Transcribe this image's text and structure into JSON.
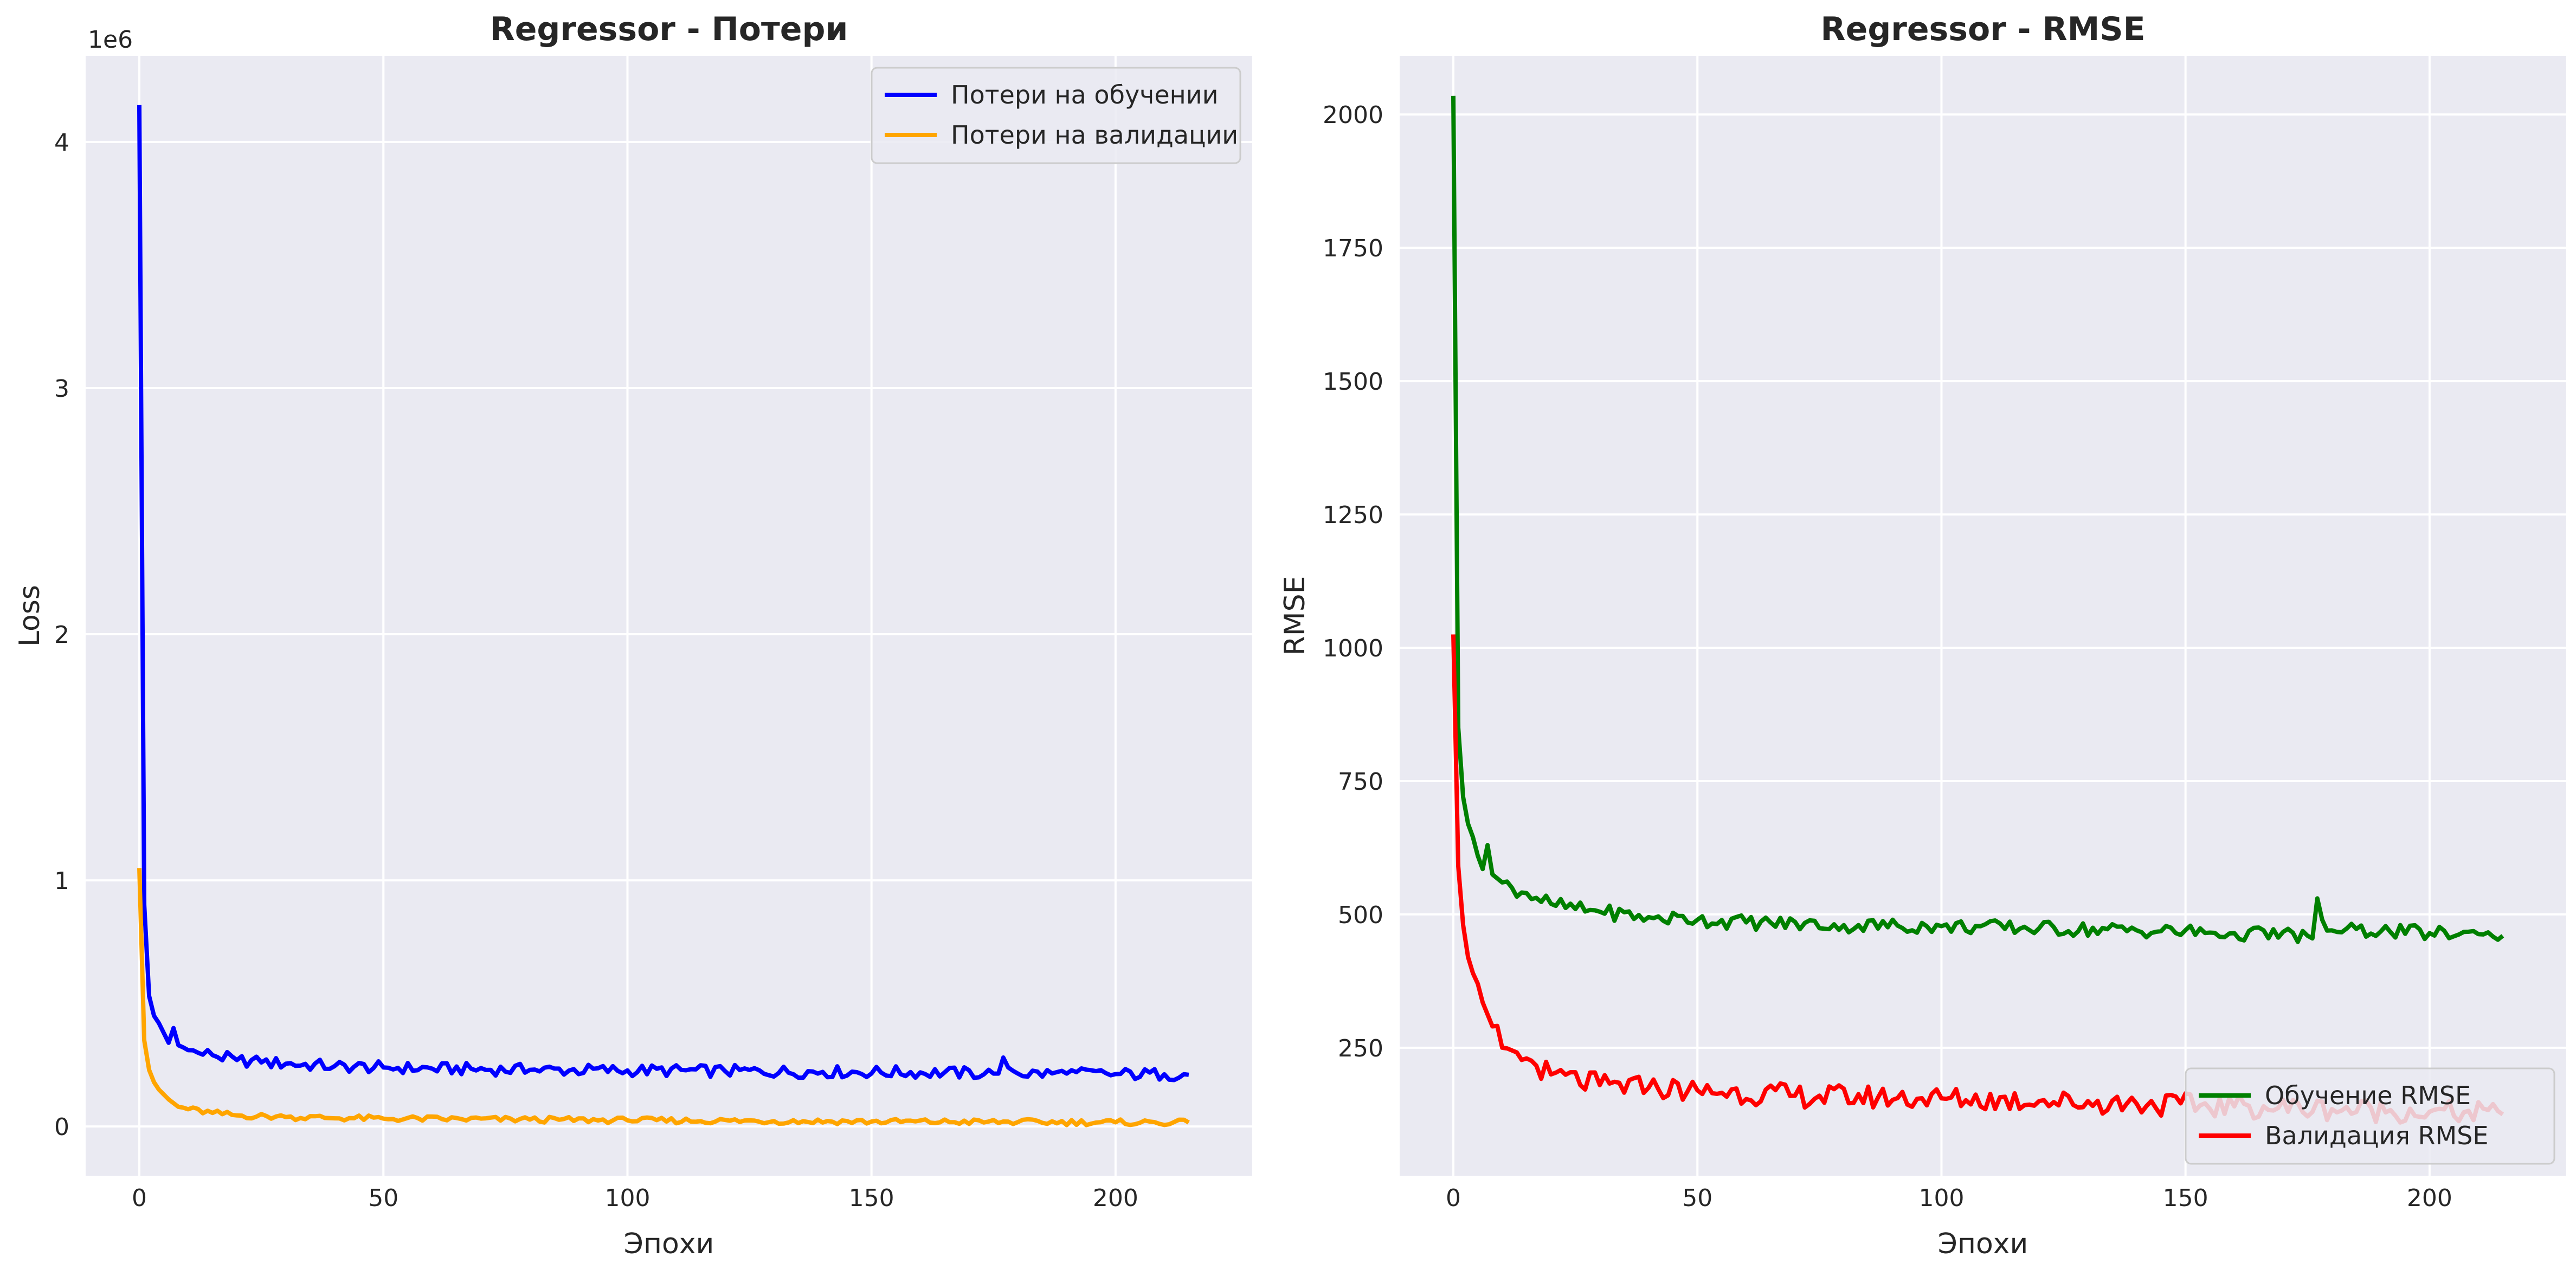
{
  "chart_data": [
    {
      "type": "line",
      "title": "Regressor - Потери",
      "xlabel": "Эпохи",
      "ylabel": "Loss",
      "offset_label": "1e6",
      "xlim": [
        -11,
        228
      ],
      "ylim": [
        -200000,
        4350000
      ],
      "xticks": [
        0,
        50,
        100,
        150,
        200
      ],
      "xtick_labels": [
        "0",
        "50",
        "100",
        "150",
        "200"
      ],
      "yticks": [
        0,
        1000000,
        2000000,
        3000000,
        4000000
      ],
      "ytick_labels": [
        "0",
        "1",
        "2",
        "3",
        "4"
      ],
      "grid": true,
      "legend_position": "upper right",
      "series": [
        {
          "name": "Потери на обучении",
          "color": "#0000ff",
          "anchors": [
            [
              0,
              4150000
            ],
            [
              1,
              900000
            ],
            [
              2,
              530000
            ],
            [
              3,
              450000
            ],
            [
              4,
              420000
            ],
            [
              5,
              380000
            ],
            [
              6,
              340000
            ],
            [
              7,
              400000
            ],
            [
              8,
              330000
            ],
            [
              10,
              310000
            ],
            [
              12,
              300000
            ],
            [
              15,
              290000
            ],
            [
              20,
              270000
            ],
            [
              25,
              260000
            ],
            [
              30,
              255000
            ],
            [
              40,
              245000
            ],
            [
              50,
              240000
            ],
            [
              60,
              235000
            ],
            [
              80,
              230000
            ],
            [
              100,
              228000
            ],
            [
              120,
              225000
            ],
            [
              140,
              222000
            ],
            [
              160,
              220000
            ],
            [
              175,
              215000
            ],
            [
              176,
              215000
            ],
            [
              177,
              280000
            ],
            [
              178,
              240000
            ],
            [
              180,
              215000
            ],
            [
              190,
              215000
            ],
            [
              200,
              213000
            ],
            [
              210,
              212000
            ],
            [
              215,
              210000
            ]
          ],
          "noise_amplitude": 25000
        },
        {
          "name": "Потери на валидации",
          "color": "#ffa500",
          "anchors": [
            [
              0,
              1050000
            ],
            [
              1,
              350000
            ],
            [
              2,
              230000
            ],
            [
              3,
              180000
            ],
            [
              4,
              150000
            ],
            [
              5,
              130000
            ],
            [
              6,
              110000
            ],
            [
              8,
              80000
            ],
            [
              10,
              70000
            ],
            [
              15,
              55000
            ],
            [
              20,
              45000
            ],
            [
              30,
              38000
            ],
            [
              50,
              32000
            ],
            [
              80,
              28000
            ],
            [
              100,
              25000
            ],
            [
              130,
              22000
            ],
            [
              150,
              20000
            ],
            [
              180,
              18000
            ],
            [
              200,
              17000
            ],
            [
              215,
              16000
            ]
          ],
          "noise_amplitude": 12000
        }
      ]
    },
    {
      "type": "line",
      "title": "Regressor - RMSE",
      "xlabel": "Эпохи",
      "ylabel": "RMSE",
      "xlim": [
        -11,
        228
      ],
      "ylim": [
        10,
        2110
      ],
      "xticks": [
        0,
        50,
        100,
        150,
        200
      ],
      "xtick_labels": [
        "0",
        "50",
        "100",
        "150",
        "200"
      ],
      "yticks": [
        250,
        500,
        750,
        1000,
        1250,
        1500,
        1750,
        2000
      ],
      "ytick_labels": [
        "250",
        "500",
        "750",
        "1000",
        "1250",
        "1500",
        "1750",
        "2000"
      ],
      "grid": true,
      "legend_position": "lower right",
      "series": [
        {
          "name": "Обучение RMSE",
          "color": "#008000",
          "anchors": [
            [
              0,
              2035
            ],
            [
              1,
              850
            ],
            [
              2,
              720
            ],
            [
              3,
              670
            ],
            [
              4,
              645
            ],
            [
              5,
              610
            ],
            [
              6,
              585
            ],
            [
              7,
              630
            ],
            [
              8,
              575
            ],
            [
              10,
              560
            ],
            [
              12,
              550
            ],
            [
              15,
              540
            ],
            [
              20,
              520
            ],
            [
              25,
              510
            ],
            [
              30,
              505
            ],
            [
              40,
              495
            ],
            [
              50,
              490
            ],
            [
              60,
              485
            ],
            [
              80,
              480
            ],
            [
              100,
              478
            ],
            [
              120,
              474
            ],
            [
              140,
              470
            ],
            [
              160,
              465
            ],
            [
              175,
              460
            ],
            [
              176,
              455
            ],
            [
              177,
              530
            ],
            [
              178,
              490
            ],
            [
              180,
              470
            ],
            [
              190,
              468
            ],
            [
              200,
              465
            ],
            [
              210,
              463
            ],
            [
              215,
              460
            ]
          ],
          "noise_amplitude": 14
        },
        {
          "name": "Валидация RMSE",
          "color": "#ff0000",
          "anchors": [
            [
              0,
              1025
            ],
            [
              1,
              590
            ],
            [
              2,
              480
            ],
            [
              3,
              420
            ],
            [
              4,
              390
            ],
            [
              5,
              370
            ],
            [
              6,
              335
            ],
            [
              8,
              290
            ],
            [
              10,
              250
            ],
            [
              12,
              245
            ],
            [
              15,
              230
            ],
            [
              20,
              200
            ],
            [
              30,
              180
            ],
            [
              40,
              175
            ],
            [
              50,
              170
            ],
            [
              70,
              160
            ],
            [
              100,
              155
            ],
            [
              120,
              150
            ],
            [
              140,
              145
            ],
            [
              160,
              140
            ],
            [
              180,
              135
            ],
            [
              200,
              130
            ],
            [
              215,
              125
            ]
          ],
          "noise_amplitude": 22
        }
      ]
    }
  ]
}
